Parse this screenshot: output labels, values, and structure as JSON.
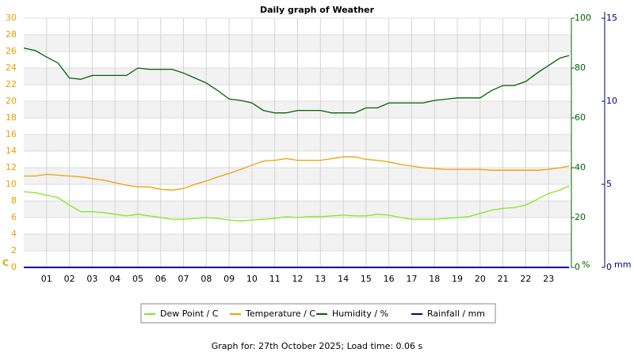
{
  "chart_data": {
    "type": "line",
    "title": "Daily graph of Weather",
    "footer": "Graph for: 27th October 2025; Load time: 0.06 s",
    "y_unit": "C",
    "y2_unit": "%",
    "y3_unit": "mm",
    "x": [
      0,
      0.5,
      1,
      1.5,
      2,
      2.5,
      3,
      3.5,
      4,
      4.5,
      5,
      5.5,
      6,
      6.5,
      7,
      7.5,
      8,
      8.5,
      9,
      9.5,
      10,
      10.5,
      11,
      11.5,
      12,
      12.5,
      13,
      13.5,
      14,
      14.5,
      15,
      15.5,
      16,
      16.5,
      17,
      17.5,
      18,
      18.5,
      19,
      19.5,
      20,
      20.5,
      21,
      21.5,
      22,
      22.5,
      23,
      23.5,
      23.9
    ],
    "xlim": [
      0,
      24
    ],
    "xticks": [
      {
        "value": 1,
        "label": "01"
      },
      {
        "value": 2,
        "label": "02"
      },
      {
        "value": 3,
        "label": "03"
      },
      {
        "value": 4,
        "label": "04"
      },
      {
        "value": 5,
        "label": "05"
      },
      {
        "value": 6,
        "label": "06"
      },
      {
        "value": 7,
        "label": "07"
      },
      {
        "value": 8,
        "label": "08"
      },
      {
        "value": 9,
        "label": "09"
      },
      10,
      11,
      12,
      13,
      14,
      15,
      16,
      17,
      18,
      19,
      20,
      21,
      22,
      23
    ],
    "ylim": [
      0,
      30
    ],
    "yticks": [
      0,
      2,
      4,
      6,
      8,
      10,
      12,
      14,
      16,
      18,
      20,
      22,
      24,
      26,
      28,
      30
    ],
    "y2lim": [
      0,
      100
    ],
    "y2ticks": [
      0,
      20,
      40,
      60,
      80,
      100
    ],
    "y3lim": [
      0,
      15
    ],
    "y3ticks": [
      0,
      5,
      10,
      15
    ],
    "grid": true,
    "series": [
      {
        "name": "Dew Point / C",
        "color": "#7ee81e",
        "values": [
          9.1,
          9.0,
          8.7,
          8.4,
          7.5,
          6.7,
          6.7,
          6.6,
          6.4,
          6.2,
          6.4,
          6.2,
          6.0,
          5.8,
          5.8,
          5.9,
          6.0,
          5.9,
          5.7,
          5.6,
          5.7,
          5.8,
          5.9,
          6.1,
          6.0,
          6.1,
          6.1,
          6.2,
          6.3,
          6.2,
          6.2,
          6.4,
          6.3,
          6.0,
          5.8,
          5.8,
          5.8,
          5.9,
          6.0,
          6.1,
          6.5,
          6.9,
          7.1,
          7.2,
          7.5,
          8.2,
          8.9,
          9.3,
          9.8
        ]
      },
      {
        "name": "Temperature / C",
        "color": "#f0a000",
        "values": [
          11.0,
          11.0,
          11.2,
          11.1,
          11.0,
          10.9,
          10.7,
          10.5,
          10.2,
          9.9,
          9.7,
          9.7,
          9.4,
          9.3,
          9.5,
          10.0,
          10.4,
          10.9,
          11.3,
          11.8,
          12.3,
          12.8,
          12.9,
          13.1,
          12.9,
          12.9,
          12.9,
          13.1,
          13.3,
          13.3,
          13.0,
          12.9,
          12.7,
          12.4,
          12.2,
          12.0,
          11.9,
          11.8,
          11.8,
          11.8,
          11.8,
          11.7,
          11.7,
          11.7,
          11.7,
          11.7,
          11.8,
          12.0,
          12.2
        ]
      },
      {
        "name": "Humidity / %",
        "color": "#006400",
        "axis": "y2",
        "values": [
          88,
          87,
          84.4,
          82,
          76,
          75.5,
          77,
          77,
          77,
          77,
          80,
          79.5,
          79.5,
          79.5,
          78,
          76,
          74,
          71,
          67.6,
          67,
          66,
          63,
          62,
          62,
          63,
          63,
          63,
          62,
          62,
          62,
          64,
          64,
          66,
          66,
          66,
          66,
          67,
          67.5,
          68,
          68,
          68,
          71,
          73,
          73,
          74.6,
          78,
          81,
          84,
          85
        ]
      },
      {
        "name": "Rainfall / mm",
        "color": "#0000a0",
        "axis": "y3",
        "values": [
          0,
          0,
          0,
          0,
          0,
          0,
          0,
          0,
          0,
          0,
          0,
          0,
          0,
          0,
          0,
          0,
          0,
          0,
          0,
          0,
          0,
          0,
          0,
          0,
          0,
          0,
          0,
          0,
          0,
          0,
          0,
          0,
          0,
          0,
          0,
          0,
          0,
          0,
          0,
          0,
          0,
          0,
          0,
          0,
          0,
          0,
          0,
          0,
          0
        ]
      }
    ]
  }
}
